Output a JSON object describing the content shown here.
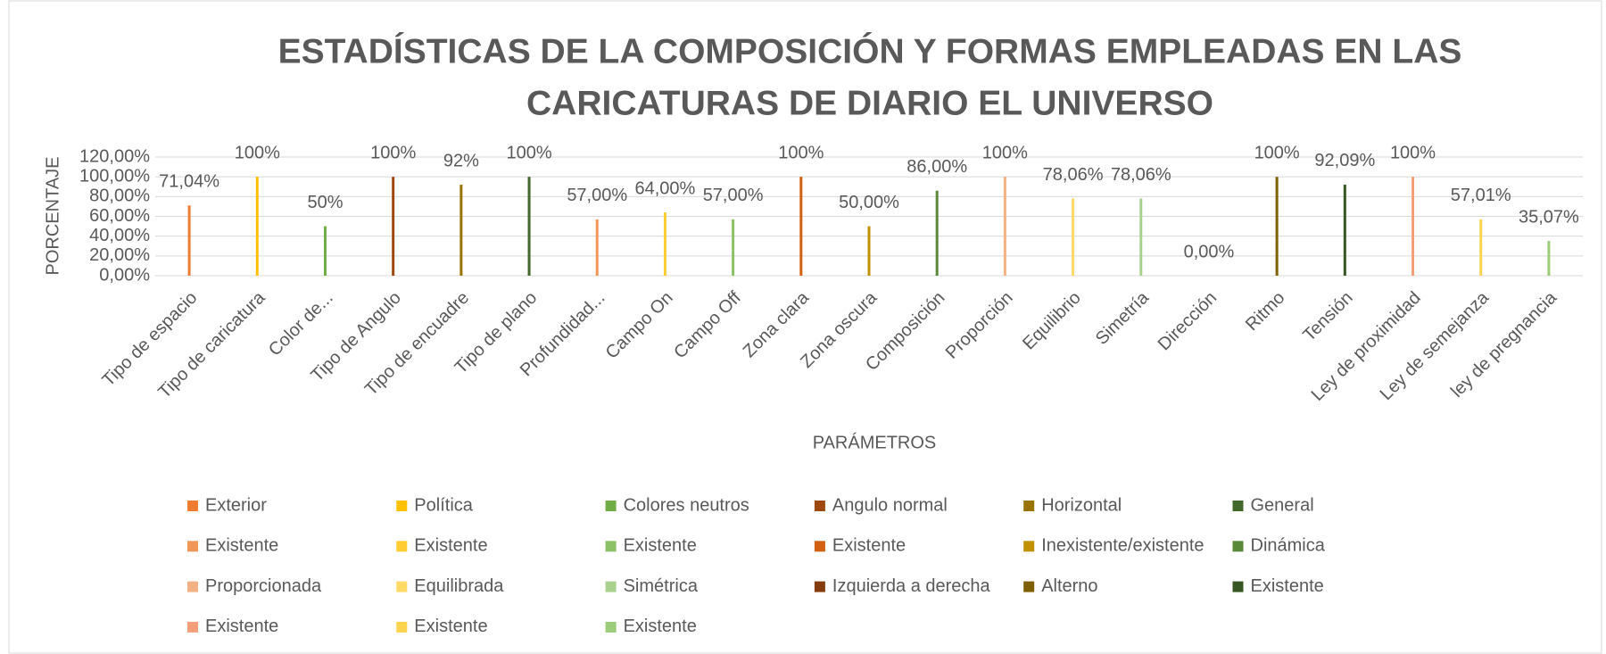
{
  "chart_data": {
    "type": "bar",
    "title": [
      "ESTADÍSTICAS DE LA COMPOSICIÓN Y FORMAS EMPLEADAS EN  LAS",
      "CARICATURAS DE DIARIO EL UNIVERSO"
    ],
    "x_label": "PARÁMETROS",
    "y_label": "PORCENTAJE",
    "categories": [
      "Tipo de espacio",
      "Tipo de caricatura",
      "Color de...",
      "Tipo de Angulo",
      "Tipo de encuadre",
      "Tipo de plano",
      "Profundidad...",
      "Campo On",
      "Campo Off",
      "Zona clara",
      "Zona oscura",
      "Composición",
      "Proporción",
      "Equilibrio",
      "Simetría",
      "Dirección",
      "Ritmo",
      "Tensión",
      "Ley de proximidad",
      "Ley de semejanza",
      "ley de pregnancia"
    ],
    "values": [
      71.04,
      100,
      50,
      100,
      92,
      100,
      57,
      64,
      57,
      100,
      50,
      86,
      100,
      78.06,
      78.06,
      0,
      100,
      92.09,
      100,
      57.01,
      35.07
    ],
    "value_labels": [
      "71,04%",
      "100%",
      "50%",
      "100%",
      "92%",
      "100%",
      "57,00%",
      "64,00%",
      "57,00%",
      "100%",
      "50,00%",
      "86,00%",
      "100%",
      "78,06%",
      "78,06%",
      "0,00%",
      "100%",
      "92,09%",
      "100%",
      "57,01%",
      "35,07%"
    ],
    "series_names": [
      "Exterior",
      "Política",
      "Colores neutros",
      "Angulo normal",
      "Horizontal",
      "General",
      "Existente",
      "Existente",
      "Existente",
      "Existente",
      "Inexistente/existente",
      "Dinámica",
      "Proporcionada",
      "Equilibrada",
      "Simétrica",
      "Izquierda a derecha",
      "Alterno",
      "Existente",
      "Existente",
      "Existente",
      "Existente"
    ],
    "colors": [
      "#ED7D31",
      "#FFC000",
      "#70AD47",
      "#9E480E",
      "#997300",
      "#43682B",
      "#F1975A",
      "#FFCD33",
      "#8CC168",
      "#D26012",
      "#C09100",
      "#5A8A39",
      "#F4B183",
      "#FFD966",
      "#A9D18E",
      "#843C0C",
      "#7F6000",
      "#375623",
      "#F3A07A",
      "#FFD34D",
      "#9BCC7A"
    ],
    "ylim": [
      0,
      120
    ],
    "yticks": [
      {
        "value": 0,
        "label": "0,00%"
      },
      {
        "value": 20,
        "label": "20,00%"
      },
      {
        "value": 40,
        "label": "40,00%"
      },
      {
        "value": 60,
        "label": "60,00%"
      },
      {
        "value": 80,
        "label": "80,00%"
      },
      {
        "value": 100,
        "label": "100,00%"
      },
      {
        "value": 120,
        "label": "120,00%"
      }
    ],
    "grid": true
  }
}
